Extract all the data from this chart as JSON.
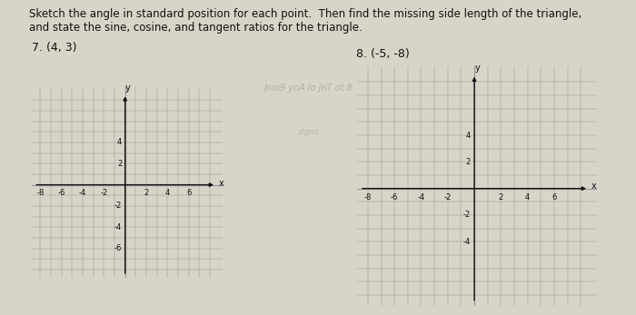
{
  "background_color": "#d8d4c8",
  "title_text": "Sketch the angle in standard position for each point.  Then find the missing side length of the triangle,\nand state the sine, cosine, and tangent ratios for the triangle.",
  "watermark_line1": "Jnio9 ynA lo jnT ot 8",
  "watermark_line2": "slgns",
  "problem7_label": "7. (4, 3)",
  "problem8_label": "8. (-5, -8)",
  "grid_color": "#999999",
  "axis_color": "#111111",
  "grid_bg": "#ccc8bc",
  "label_fontsize": 6,
  "tick_label_fontsize": 6,
  "problem_label_fontsize": 9,
  "title_fontsize": 8.5,
  "grid1_xlim": [
    -8,
    8
  ],
  "grid1_ylim": [
    -8,
    8
  ],
  "grid1_xticks": [
    -8,
    -6,
    -4,
    -2,
    2,
    4,
    6
  ],
  "grid1_yticks": [
    -6,
    -4,
    -2,
    2,
    4
  ],
  "grid2_xlim": [
    -8,
    8
  ],
  "grid2_ylim": [
    -8,
    8
  ],
  "grid2_xticks": [
    -8,
    -6,
    -4,
    -2,
    2,
    4,
    6
  ],
  "grid2_yticks": [
    -4,
    -2,
    2,
    4
  ]
}
